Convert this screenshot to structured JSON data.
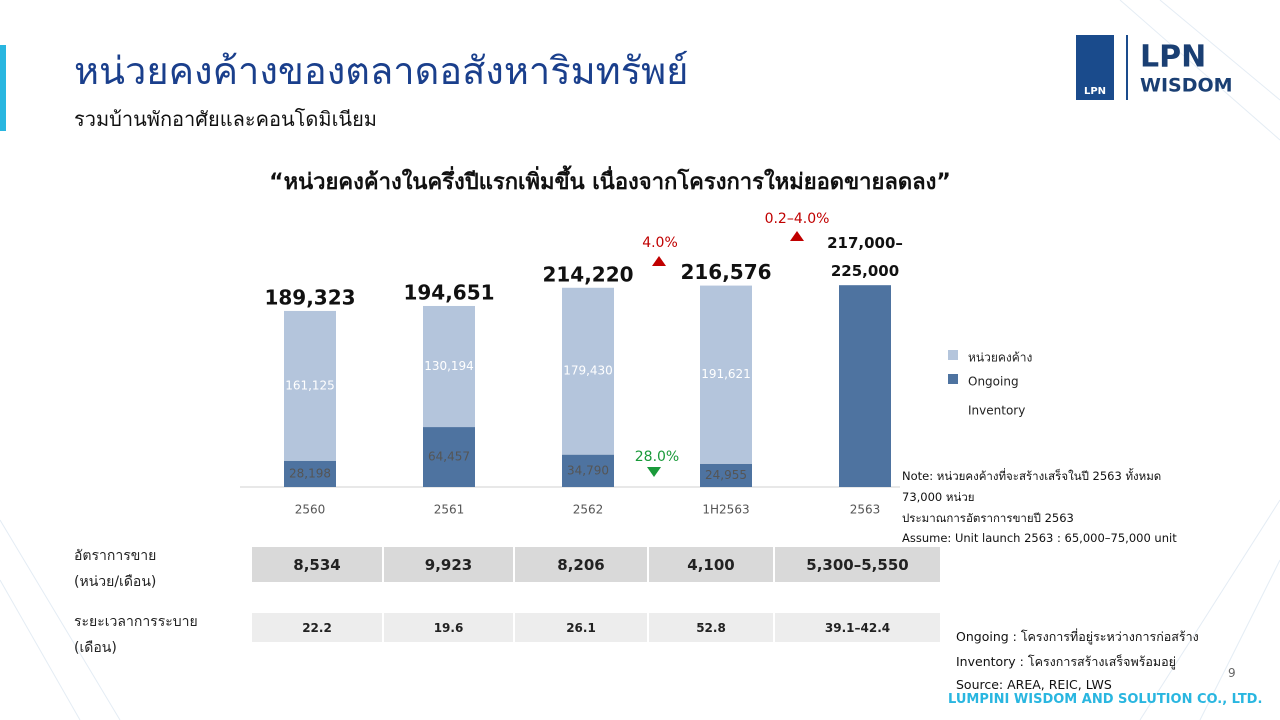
{
  "title": "หน่วยคงค้างของตลาดอสังหาริมทรัพย์",
  "subtitle": "รวมบ้านพักอาศัยและคอนโดมิเนียม",
  "logo": {
    "mark": "LPN",
    "name": "LPN",
    "tagline": "WISDOM"
  },
  "chart_data": {
    "type": "stacked_bar",
    "title": "“หน่วยคงค้างในครึ่งปีแรกเพิ่มขึ้น เนื่องจากโครงการใหม่ยอดขายลดลง”",
    "categories": [
      "2560",
      "2561",
      "2562",
      "1H2563",
      "2563"
    ],
    "series": [
      {
        "name": "หน่วยคงค้าง",
        "color": "#b4c5dc",
        "values": [
          161125,
          130194,
          179430,
          191621,
          null
        ],
        "value_labels": [
          "161,125",
          "130,194",
          "179,430",
          "191,621",
          null
        ]
      },
      {
        "name": "Ongoing",
        "color": "#4e73a0",
        "values": [
          28198,
          64457,
          34790,
          24955,
          null
        ],
        "value_labels": [
          "28,198",
          "64,457",
          "34,790",
          "24,955",
          null
        ]
      }
    ],
    "legend_extra": "Inventory",
    "totals": {
      "color": "#4e73a0",
      "values": [
        189323,
        194651,
        214220,
        216576,
        217000
      ],
      "value_labels": [
        "189,323",
        "194,651",
        "214,220",
        "216,576",
        "217,000–225,000"
      ]
    },
    "annotations": [
      {
        "text": "4.0%",
        "color": "#c00000",
        "direction": "up"
      },
      {
        "text": "28.0%",
        "color": "#1a9a3a",
        "direction": "down"
      },
      {
        "text": "0.2–4.0%",
        "color": "#c00000",
        "direction": "up"
      }
    ]
  },
  "table": {
    "rows": [
      {
        "label": [
          "อัตราการขาย",
          "(หน่วย/เดือน)"
        ],
        "cells": [
          "8,534",
          "9,923",
          "8,206",
          "4,100",
          "5,300–5,550"
        ]
      },
      {
        "label": [
          "ระยะเวลาการระบาย",
          "(เดือน)"
        ],
        "cells": [
          "22.2",
          "19.6",
          "26.1",
          "52.8",
          "39.1–42.4"
        ]
      }
    ]
  },
  "note": [
    "Note: หน่วยคงค้างที่จะสร้างเสร็จในปี 2563 ทั้งหมด",
    "73,000 หน่วย",
    "ประมาณการอัตราการขายปี 2563",
    "Assume: Unit launch 2563 : 65,000–75,000 unit"
  ],
  "definitions": [
    "Ongoing :  โครงการที่อยู่ระหว่างการก่อสร้าง",
    "Inventory : โครงการสร้างเสร็จพร้อมอยู่",
    "Source: AREA, REIC, LWS"
  ],
  "page_number": "9",
  "footer": "LUMPINI WISDOM AND SOLUTION CO., LTD."
}
